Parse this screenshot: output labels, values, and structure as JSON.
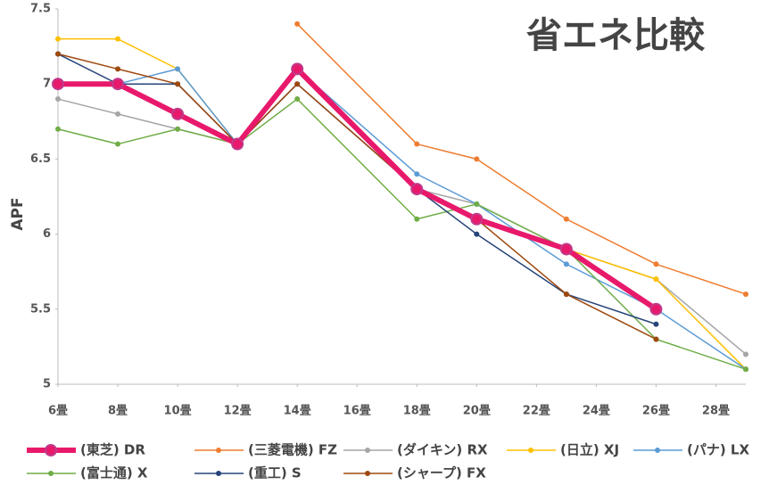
{
  "chart_data": {
    "type": "line",
    "title": "省エネ比較",
    "y_label": "APF",
    "x": [
      6,
      8,
      10,
      12,
      14,
      18,
      20,
      23,
      26,
      29
    ],
    "xlim": [
      6,
      29
    ],
    "xticks": [
      {
        "value": 6,
        "label": "6畳"
      },
      {
        "value": 8,
        "label": "8畳"
      },
      {
        "value": 10,
        "label": "10畳"
      },
      {
        "value": 12,
        "label": "12畳"
      },
      {
        "value": 14,
        "label": "14畳"
      },
      {
        "value": 16,
        "label": "16畳"
      },
      {
        "value": 18,
        "label": "18畳"
      },
      {
        "value": 20,
        "label": "20畳"
      },
      {
        "value": 22,
        "label": "22畳"
      },
      {
        "value": 24,
        "label": "24畳"
      },
      {
        "value": 26,
        "label": "26畳"
      },
      {
        "value": 28,
        "label": "28畳"
      }
    ],
    "ylim": [
      5,
      7.5
    ],
    "yticks": [
      5,
      5.5,
      6,
      6.5,
      7,
      7.5
    ],
    "grid": false,
    "legend": "bottom",
    "series": [
      {
        "name": "(東芝) DR",
        "color": "#e8196b",
        "values": [
          7.0,
          7.0,
          6.8,
          6.6,
          7.1,
          6.3,
          6.1,
          5.9,
          5.5,
          null
        ]
      },
      {
        "name": "(三菱電機) FZ",
        "color": "#ed7d31",
        "values": [
          null,
          null,
          null,
          null,
          7.4,
          6.6,
          6.5,
          6.1,
          5.8,
          5.6
        ]
      },
      {
        "name": "(ダイキン) RX",
        "color": "#a5a5a5",
        "values": [
          6.9,
          6.8,
          6.7,
          6.6,
          7.1,
          6.3,
          6.2,
          5.9,
          5.7,
          5.2
        ]
      },
      {
        "name": "(日立) XJ",
        "color": "#ffc000",
        "values": [
          7.3,
          7.3,
          7.1,
          6.6,
          7.1,
          6.3,
          6.1,
          5.9,
          5.7,
          5.1
        ]
      },
      {
        "name": "(パナ) LX",
        "color": "#5b9bd5",
        "values": [
          7.0,
          7.0,
          7.1,
          6.6,
          7.1,
          6.4,
          6.2,
          5.8,
          5.5,
          5.1
        ]
      },
      {
        "name": "(富士通) X",
        "color": "#70ad47",
        "values": [
          6.7,
          6.6,
          6.7,
          6.6,
          6.9,
          6.1,
          6.2,
          5.9,
          5.3,
          5.1
        ]
      },
      {
        "name": "(重工) S",
        "color": "#264478",
        "values": [
          7.2,
          7.0,
          7.0,
          6.6,
          7.0,
          6.3,
          6.0,
          5.6,
          5.4,
          null
        ]
      },
      {
        "name": "(シャープ) FX",
        "color": "#9e480e",
        "values": [
          7.2,
          7.1,
          7.0,
          6.6,
          7.0,
          6.3,
          6.1,
          5.6,
          5.3,
          null
        ]
      }
    ]
  }
}
